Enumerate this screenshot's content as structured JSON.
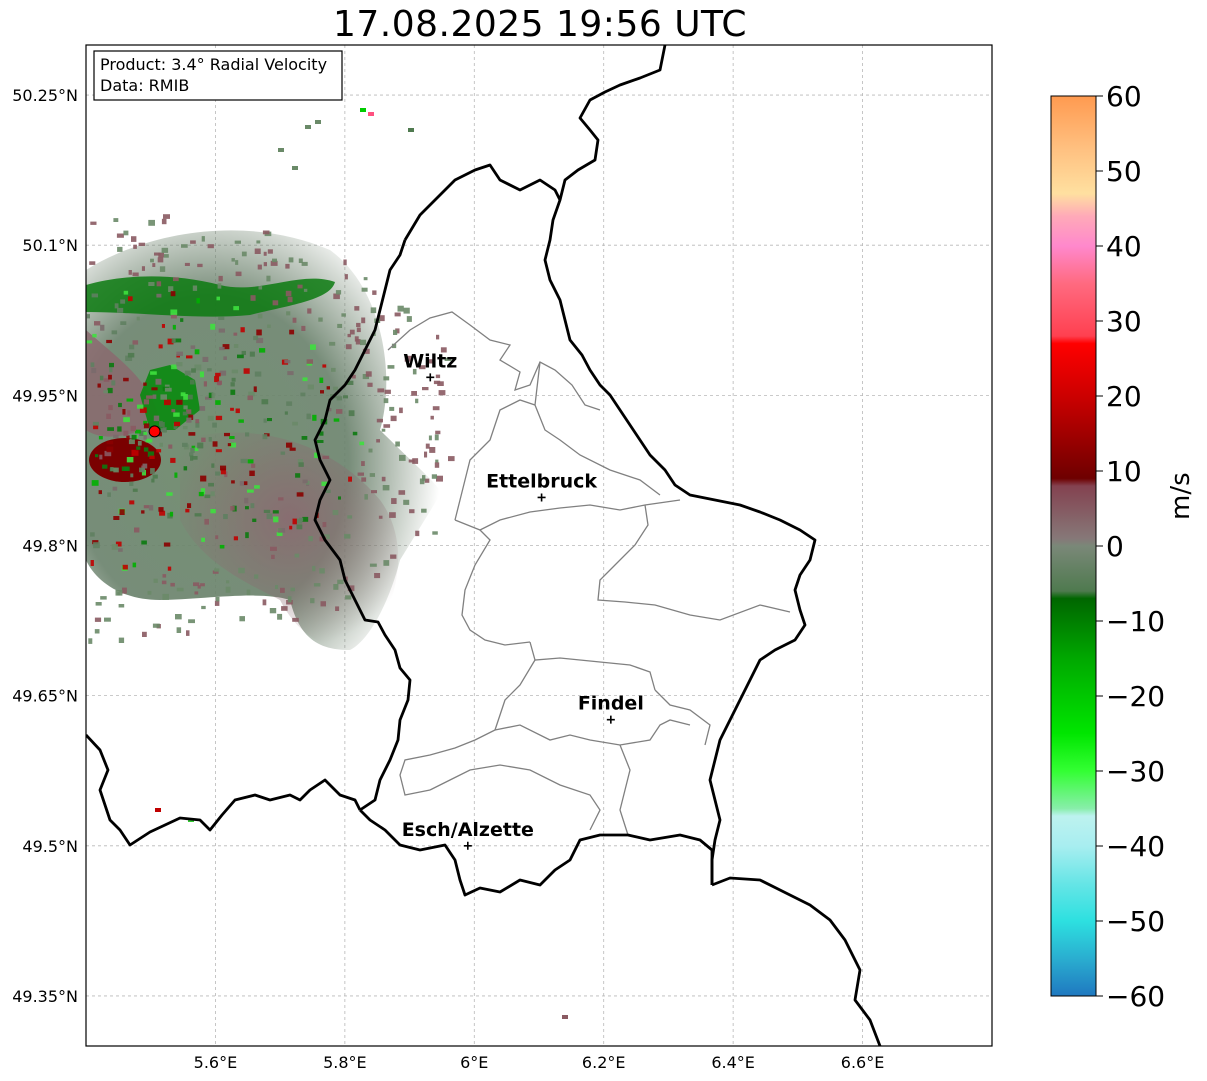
{
  "title": "17.08.2025 19:56 UTC",
  "info_box": {
    "product": "Product: 3.4° Radial Velocity",
    "data": "Data: RMIB"
  },
  "lat_ticks": [
    {
      "label": "50.25°N",
      "value": 50.25
    },
    {
      "label": "50.1°N",
      "value": 50.1
    },
    {
      "label": "49.95°N",
      "value": 49.95
    },
    {
      "label": "49.8°N",
      "value": 49.8
    },
    {
      "label": "49.65°N",
      "value": 49.65
    },
    {
      "label": "49.5°N",
      "value": 49.5
    },
    {
      "label": "49.35°N",
      "value": 49.35
    }
  ],
  "lon_ticks": [
    {
      "label": "5.6°E",
      "value": 5.6
    },
    {
      "label": "5.8°E",
      "value": 5.8
    },
    {
      "label": "6°E",
      "value": 6.0
    },
    {
      "label": "6.2°E",
      "value": 6.2
    },
    {
      "label": "6.4°E",
      "value": 6.4
    },
    {
      "label": "6.6°E",
      "value": 6.6
    }
  ],
  "extent": {
    "lon_min": 5.4,
    "lon_max": 6.8,
    "lat_min": 49.3,
    "lat_max": 50.3
  },
  "cities": [
    {
      "name": "Wiltz",
      "lon": 5.932,
      "lat": 49.968
    },
    {
      "name": "Ettelbruck",
      "lon": 6.104,
      "lat": 49.848
    },
    {
      "name": "Findel",
      "lon": 6.211,
      "lat": 49.626
    },
    {
      "name": "Esch/Alzette",
      "lon": 5.99,
      "lat": 49.5
    }
  ],
  "radar_site": {
    "lon": 5.506,
    "lat": 49.914
  },
  "colorbar": {
    "unit": "m/s",
    "min": -60,
    "max": 60,
    "ticks": [
      {
        "label": "60",
        "value": 60
      },
      {
        "label": "50",
        "value": 50
      },
      {
        "label": "40",
        "value": 40
      },
      {
        "label": "30",
        "value": 30
      },
      {
        "label": "20",
        "value": 20
      },
      {
        "label": "10",
        "value": 10
      },
      {
        "label": "0",
        "value": 0
      },
      {
        "label": "−10",
        "value": -10
      },
      {
        "label": "−20",
        "value": -20
      },
      {
        "label": "−30",
        "value": -30
      },
      {
        "label": "−40",
        "value": -40
      },
      {
        "label": "−50",
        "value": -50
      },
      {
        "label": "−60",
        "value": -60
      }
    ],
    "stops": [
      {
        "v": -60,
        "c": "#1f78c0"
      },
      {
        "v": -55,
        "c": "#2aaed0"
      },
      {
        "v": -50,
        "c": "#2de0e0"
      },
      {
        "v": -45,
        "c": "#66e5e6"
      },
      {
        "v": -40,
        "c": "#a8eef0"
      },
      {
        "v": -36,
        "c": "#bdf2ef"
      },
      {
        "v": -35,
        "c": "#88eeaa"
      },
      {
        "v": -30,
        "c": "#33ff33"
      },
      {
        "v": -25,
        "c": "#00e600"
      },
      {
        "v": -15,
        "c": "#00a800"
      },
      {
        "v": -7,
        "c": "#006600"
      },
      {
        "v": -6,
        "c": "#4f7a4f"
      },
      {
        "v": 0,
        "c": "#7a8878"
      },
      {
        "v": 1,
        "c": "#867878"
      },
      {
        "v": 8,
        "c": "#844250"
      },
      {
        "v": 9,
        "c": "#6e0000"
      },
      {
        "v": 20,
        "c": "#cc0000"
      },
      {
        "v": 27,
        "c": "#ff0000"
      },
      {
        "v": 28,
        "c": "#ff4050"
      },
      {
        "v": 35,
        "c": "#ff6a80"
      },
      {
        "v": 40,
        "c": "#ff88cc"
      },
      {
        "v": 44,
        "c": "#ffaab8"
      },
      {
        "v": 47,
        "c": "#ffe0a0"
      },
      {
        "v": 53,
        "c": "#ffc080"
      },
      {
        "v": 60,
        "c": "#ff9a50"
      }
    ]
  },
  "colors": {
    "border": "#000000",
    "district": "#808080",
    "grid": "#b8b8b8",
    "radar_dot": "#ff0000",
    "outbound": "#8b0000",
    "inbound": "#006400",
    "neutral_green": "#5f8060",
    "neutral_mauve": "#8a5a62"
  }
}
